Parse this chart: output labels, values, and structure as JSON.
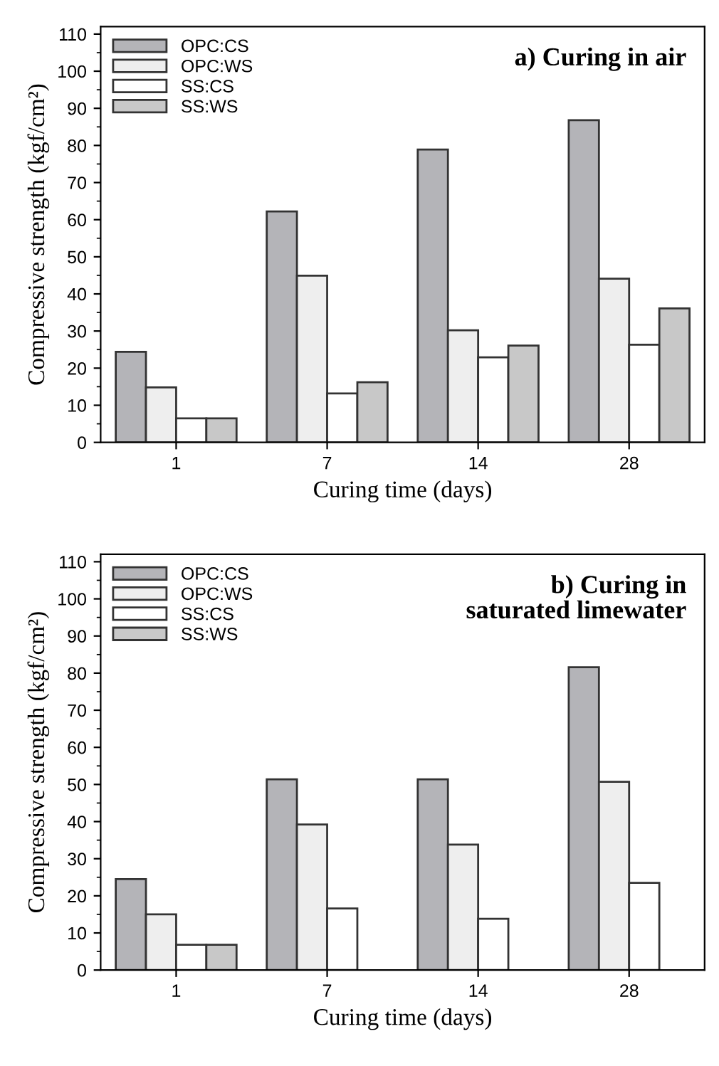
{
  "chart_data": [
    {
      "type": "bar",
      "title": "a) Curing in air",
      "xlabel": "Curing time (days)",
      "ylabel": "Compressive strength (kgf/cm²)",
      "categories": [
        "1",
        "7",
        "14",
        "28"
      ],
      "ylim": [
        0,
        112
      ],
      "yticks": [
        0,
        10,
        20,
        30,
        40,
        50,
        60,
        70,
        80,
        90,
        100,
        110
      ],
      "legend": "top left",
      "grid": false,
      "series": [
        {
          "name": "OPC:CS",
          "color": "#b4b4b8",
          "values": [
            24.4,
            62.2,
            78.9,
            86.8
          ]
        },
        {
          "name": "OPC:WS",
          "color": "#eeeeee",
          "values": [
            14.8,
            44.9,
            30.2,
            44.1
          ]
        },
        {
          "name": "SS:CS",
          "color": "#ffffff",
          "values": [
            6.5,
            13.2,
            22.9,
            26.3
          ]
        },
        {
          "name": "SS:WS",
          "color": "#c8c8c8",
          "values": [
            6.5,
            16.2,
            26.1,
            36.1
          ]
        }
      ]
    },
    {
      "type": "bar",
      "title": "b) Curing in\n    saturated limewater",
      "xlabel": "Curing time (days)",
      "ylabel": "Compressive strength (kgf/cm²)",
      "categories": [
        "1",
        "7",
        "14",
        "28"
      ],
      "ylim": [
        0,
        112
      ],
      "yticks": [
        0,
        10,
        20,
        30,
        40,
        50,
        60,
        70,
        80,
        90,
        100,
        110
      ],
      "legend": "top left",
      "grid": false,
      "series": [
        {
          "name": "OPC:CS",
          "color": "#b4b4b8",
          "values": [
            24.5,
            51.4,
            51.4,
            81.6
          ]
        },
        {
          "name": "OPC:WS",
          "color": "#eeeeee",
          "values": [
            15.0,
            39.2,
            33.8,
            50.7
          ]
        },
        {
          "name": "SS:CS",
          "color": "#ffffff",
          "values": [
            6.8,
            16.6,
            13.8,
            23.5
          ]
        },
        {
          "name": "SS:WS",
          "color": "#c8c8c8",
          "values": [
            6.8,
            null,
            null,
            null
          ]
        }
      ]
    }
  ]
}
